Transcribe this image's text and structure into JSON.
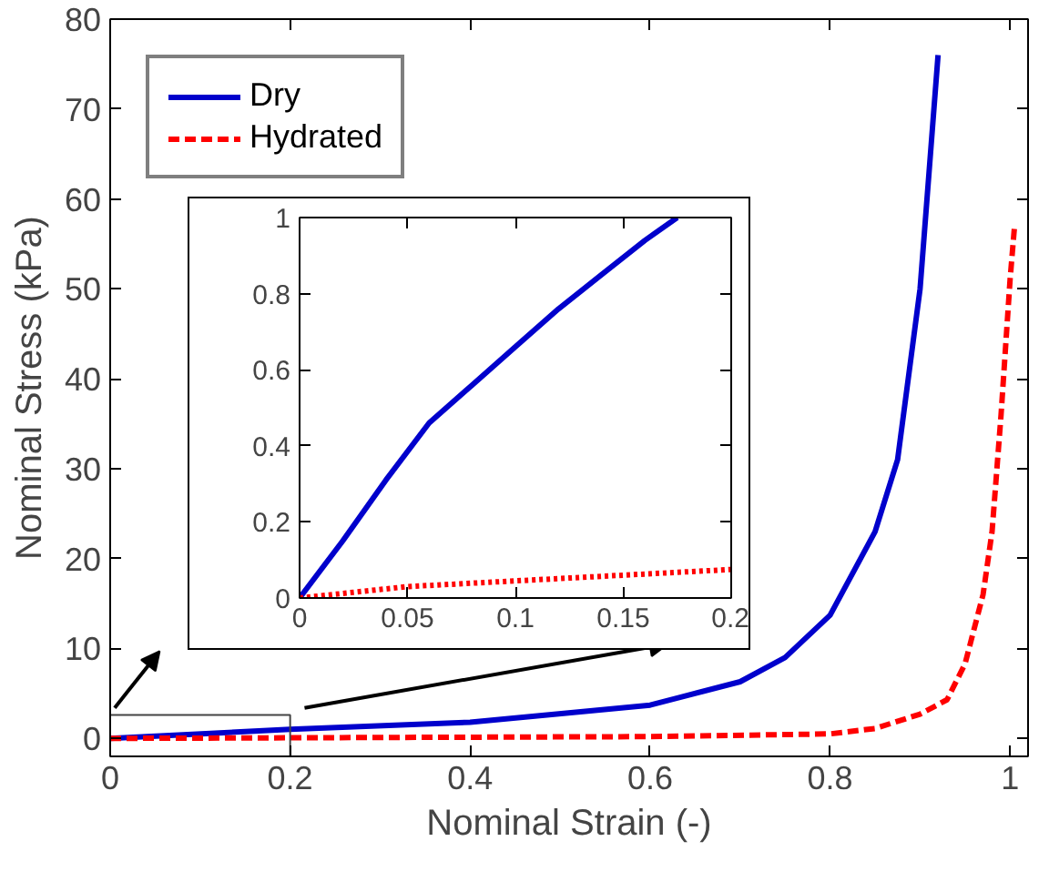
{
  "chart_data": [
    {
      "type": "line",
      "xlabel": "Nominal Strain (-)",
      "ylabel": "Nominal Stress (kPa)",
      "xlim": [
        0,
        1.02
      ],
      "ylim": [
        -2,
        80
      ],
      "xticks": [
        0,
        0.2,
        0.4,
        0.6,
        0.8,
        1
      ],
      "yticks": [
        0,
        10,
        20,
        30,
        40,
        50,
        60,
        70,
        80
      ],
      "legend": "top left",
      "grid": false,
      "series": [
        {
          "name": "Dry",
          "color": "#0000cc",
          "line_style": "solid",
          "x": [
            0,
            0.2,
            0.4,
            0.6,
            0.7,
            0.75,
            0.8,
            0.85,
            0.875,
            0.9,
            0.92
          ],
          "values": [
            0,
            1.0,
            1.8,
            3.7,
            6.3,
            9,
            13.7,
            23,
            31,
            50,
            76
          ]
        },
        {
          "name": "Hydrated",
          "color": "#ff0000",
          "line_style": "dashed",
          "x": [
            0,
            0.6,
            0.8,
            0.85,
            0.9,
            0.93,
            0.95,
            0.97,
            0.98,
            0.99,
            1.0,
            1.005
          ],
          "values": [
            0,
            0.2,
            0.5,
            1.1,
            2.7,
            4.3,
            8.3,
            16,
            23,
            36,
            51,
            57
          ]
        }
      ]
    },
    {
      "type": "line",
      "xlim": [
        0,
        0.2
      ],
      "ylim": [
        0,
        1
      ],
      "xticks": [
        0,
        0.05,
        0.1,
        0.15,
        0.2
      ],
      "yticks": [
        0,
        0.2,
        0.4,
        0.6,
        0.8,
        1
      ],
      "grid": false,
      "series": [
        {
          "color": "#0000cc",
          "line_style": "solid",
          "x": [
            0,
            0.02,
            0.04,
            0.06,
            0.08,
            0.1,
            0.12,
            0.14,
            0.16,
            0.175
          ],
          "values": [
            0,
            0.15,
            0.31,
            0.46,
            0.56,
            0.66,
            0.76,
            0.85,
            0.94,
            1.0
          ]
        },
        {
          "color": "#ff0000",
          "line_style": "dotted",
          "x": [
            0,
            0.05,
            0.1,
            0.15,
            0.2
          ],
          "values": [
            0,
            0.03,
            0.045,
            0.06,
            0.075
          ]
        }
      ]
    }
  ]
}
